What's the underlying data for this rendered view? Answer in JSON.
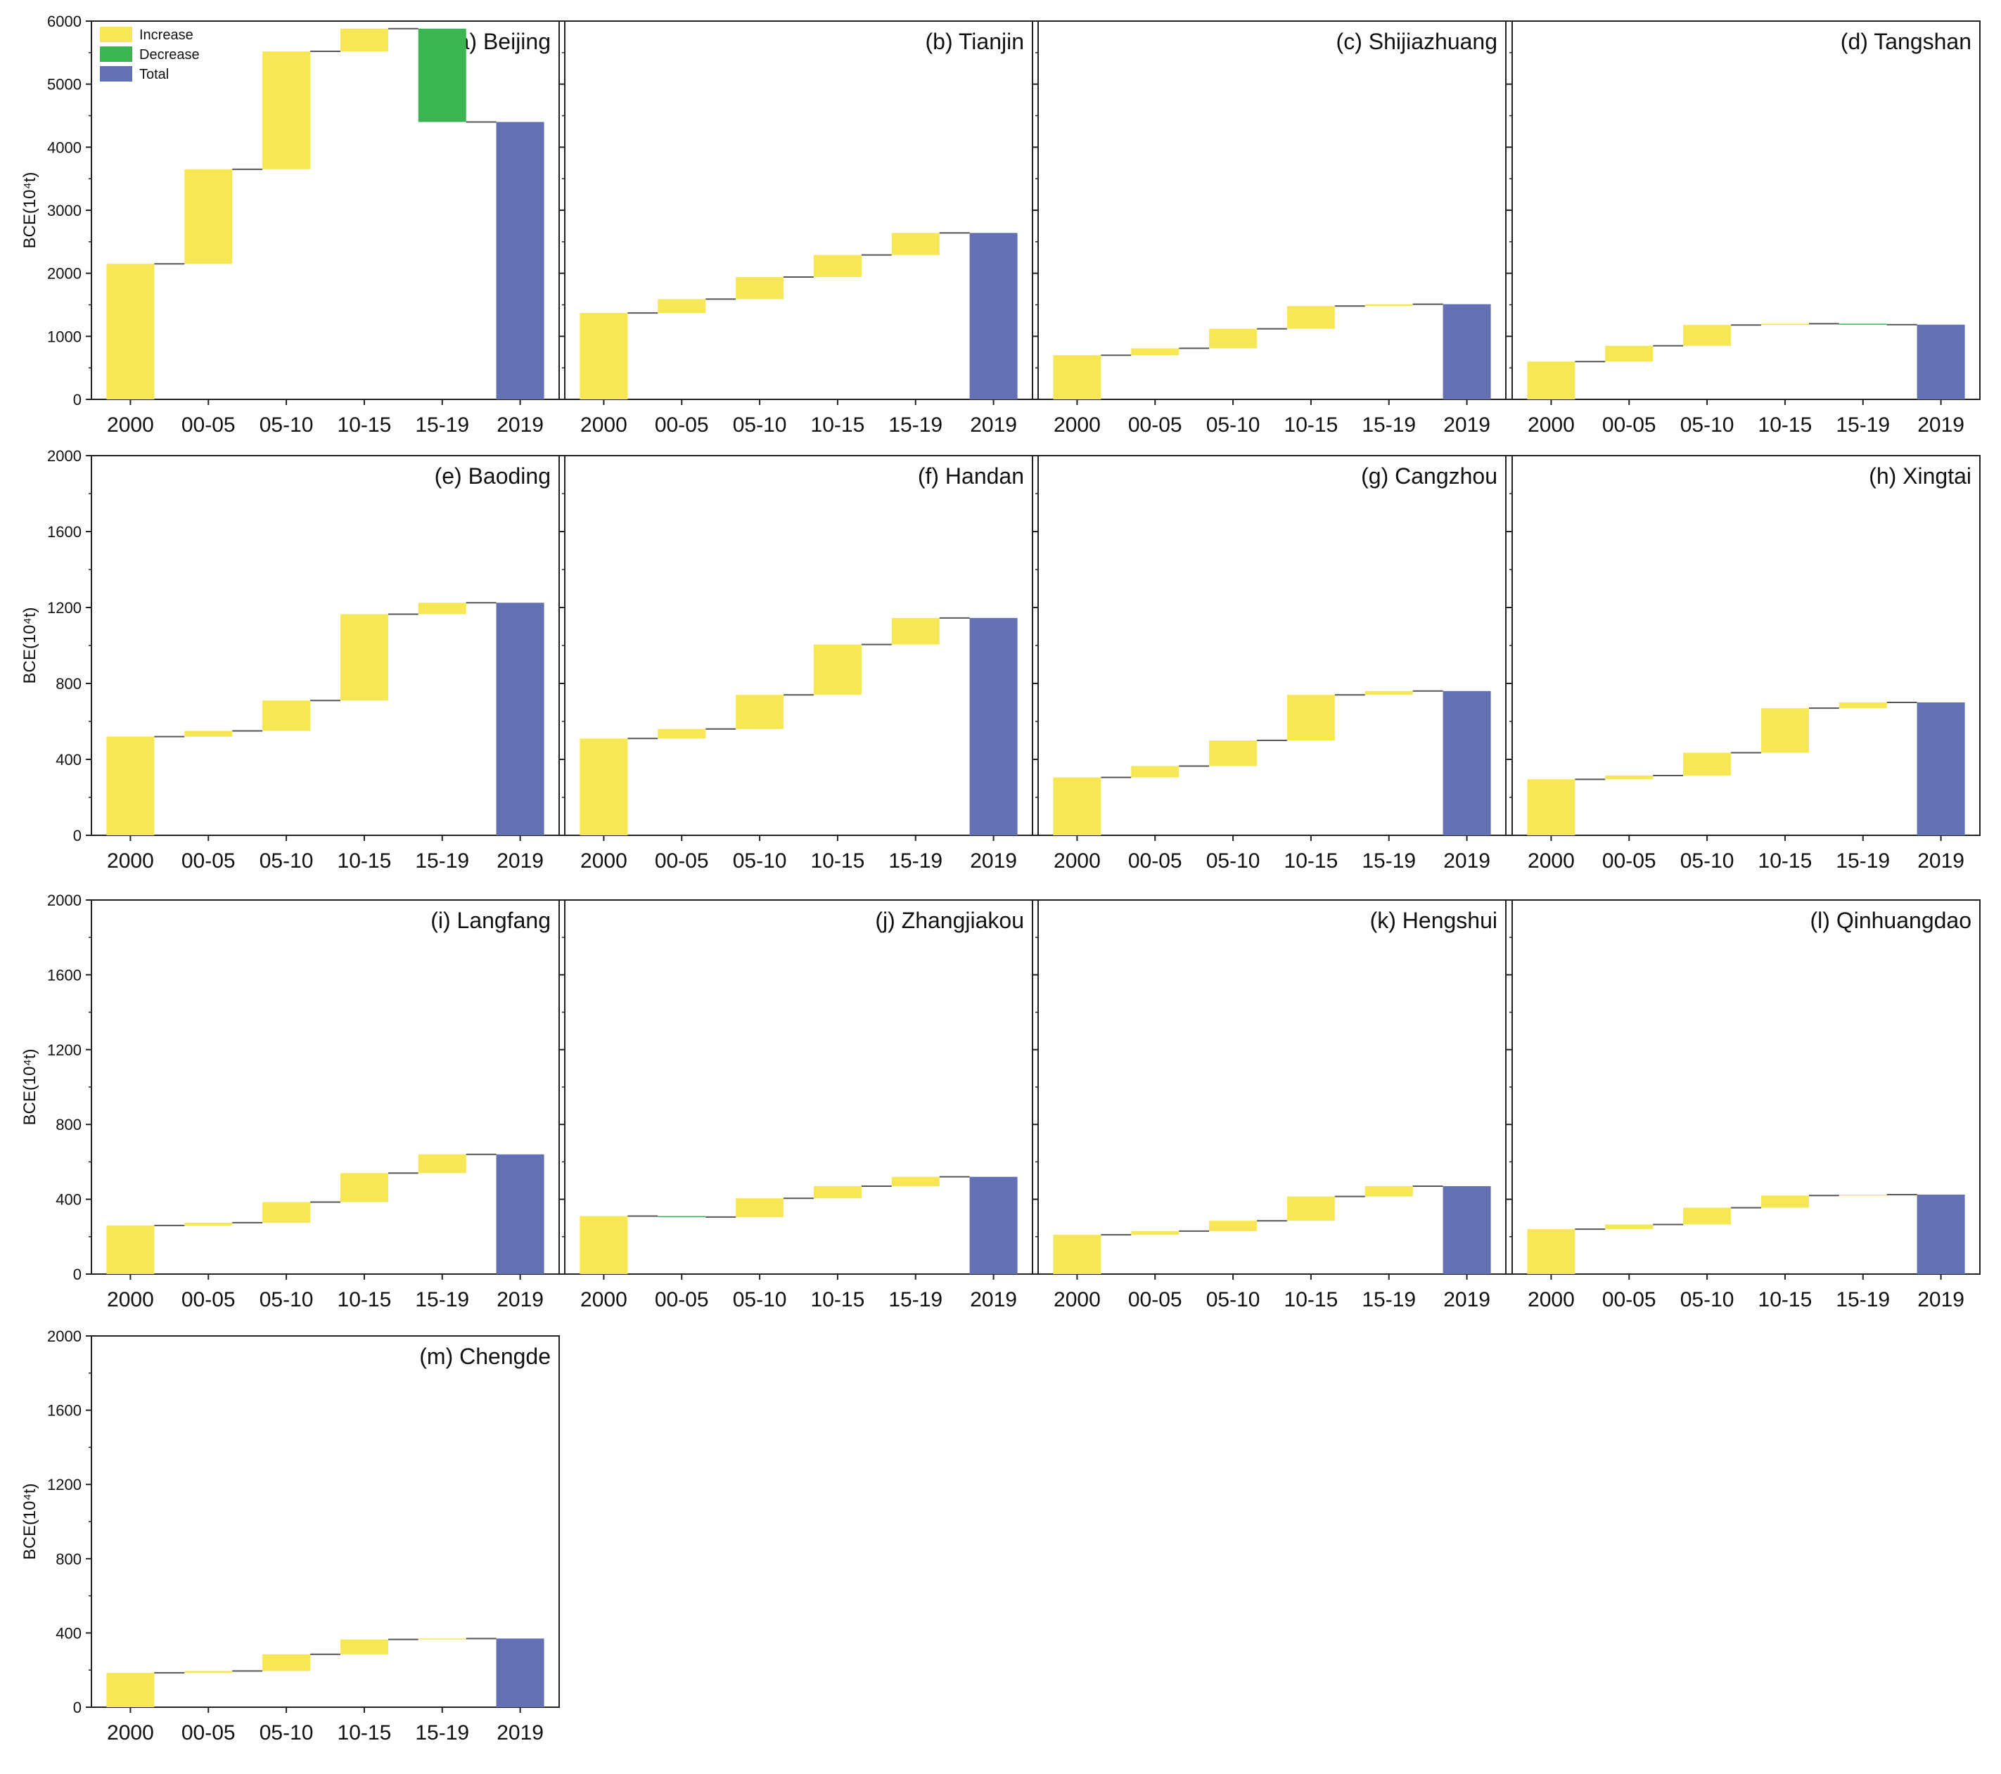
{
  "legend": {
    "increase_label": "Increase",
    "decrease_label": "Decrease",
    "total_label": "Total"
  },
  "colors": {
    "increase": "#F7E754",
    "decrease": "#3AB551",
    "total": "#6470B4",
    "connector": "#555555",
    "axis": "#222222"
  },
  "y_axis_label": "BCE(10⁴t)",
  "chart_data": [
    {
      "type": "waterfall",
      "title": "(a) Beijing",
      "xlabel": "",
      "ylabel": "BCE(10⁴t)",
      "categories": [
        "2000",
        "00-05",
        "05-10",
        "10-15",
        "15-19",
        "2019"
      ],
      "start": 2150,
      "changes": [
        1500,
        1870,
        360,
        -1480
      ],
      "total": 4400,
      "ylim": [
        0,
        6000
      ],
      "yticks": [
        0,
        1000,
        2000,
        3000,
        4000,
        5000,
        6000
      ],
      "show_y": true
    },
    {
      "type": "waterfall",
      "title": "(b) Tianjin",
      "xlabel": "",
      "ylabel": "BCE(10⁴t)",
      "categories": [
        "2000",
        "00-05",
        "05-10",
        "10-15",
        "15-19",
        "2019"
      ],
      "start": 1370,
      "changes": [
        220,
        350,
        350,
        350
      ],
      "total": 2640,
      "ylim": [
        0,
        6000
      ],
      "yticks": [
        0,
        1000,
        2000,
        3000,
        4000,
        5000,
        6000
      ],
      "show_y": false
    },
    {
      "type": "waterfall",
      "title": "(c) Shijiazhuang",
      "xlabel": "",
      "ylabel": "BCE(10⁴t)",
      "categories": [
        "2000",
        "00-05",
        "05-10",
        "10-15",
        "15-19",
        "2019"
      ],
      "start": 700,
      "changes": [
        110,
        310,
        360,
        30
      ],
      "total": 1510,
      "ylim": [
        0,
        6000
      ],
      "yticks": [
        0,
        1000,
        2000,
        3000,
        4000,
        5000,
        6000
      ],
      "show_y": false
    },
    {
      "type": "waterfall",
      "title": "(d) Tangshan",
      "xlabel": "",
      "ylabel": "BCE(10⁴t)",
      "categories": [
        "2000",
        "00-05",
        "05-10",
        "10-15",
        "15-19",
        "2019"
      ],
      "start": 600,
      "changes": [
        250,
        330,
        20,
        -15
      ],
      "total": 1185,
      "ylim": [
        0,
        6000
      ],
      "yticks": [
        0,
        1000,
        2000,
        3000,
        4000,
        5000,
        6000
      ],
      "show_y": false
    },
    {
      "type": "waterfall",
      "title": "(e) Baoding",
      "xlabel": "",
      "ylabel": "BCE(10⁴t)",
      "categories": [
        "2000",
        "00-05",
        "05-10",
        "10-15",
        "15-19",
        "2019"
      ],
      "start": 520,
      "changes": [
        30,
        160,
        455,
        60
      ],
      "total": 1225,
      "ylim": [
        0,
        2000
      ],
      "yticks": [
        0,
        400,
        800,
        1200,
        1600,
        2000
      ],
      "show_y": true
    },
    {
      "type": "waterfall",
      "title": "(f) Handan",
      "xlabel": "",
      "ylabel": "BCE(10⁴t)",
      "categories": [
        "2000",
        "00-05",
        "05-10",
        "10-15",
        "15-19",
        "2019"
      ],
      "start": 510,
      "changes": [
        50,
        180,
        265,
        140
      ],
      "total": 1145,
      "ylim": [
        0,
        2000
      ],
      "yticks": [
        0,
        400,
        800,
        1200,
        1600,
        2000
      ],
      "show_y": false
    },
    {
      "type": "waterfall",
      "title": "(g) Cangzhou",
      "xlabel": "",
      "ylabel": "BCE(10⁴t)",
      "categories": [
        "2000",
        "00-05",
        "05-10",
        "10-15",
        "15-19",
        "2019"
      ],
      "start": 305,
      "changes": [
        60,
        135,
        240,
        20
      ],
      "total": 760,
      "ylim": [
        0,
        2000
      ],
      "yticks": [
        0,
        400,
        800,
        1200,
        1600,
        2000
      ],
      "show_y": false
    },
    {
      "type": "waterfall",
      "title": "(h) Xingtai",
      "xlabel": "",
      "ylabel": "BCE(10⁴t)",
      "categories": [
        "2000",
        "00-05",
        "05-10",
        "10-15",
        "15-19",
        "2019"
      ],
      "start": 295,
      "changes": [
        20,
        120,
        235,
        30
      ],
      "total": 700,
      "ylim": [
        0,
        2000
      ],
      "yticks": [
        0,
        400,
        800,
        1200,
        1600,
        2000
      ],
      "show_y": false
    },
    {
      "type": "waterfall",
      "title": "(i) Langfang",
      "xlabel": "",
      "ylabel": "BCE(10⁴t)",
      "categories": [
        "2000",
        "00-05",
        "05-10",
        "10-15",
        "15-19",
        "2019"
      ],
      "start": 260,
      "changes": [
        15,
        110,
        155,
        100
      ],
      "total": 640,
      "ylim": [
        0,
        2000
      ],
      "yticks": [
        0,
        400,
        800,
        1200,
        1600,
        2000
      ],
      "show_y": true
    },
    {
      "type": "waterfall",
      "title": "(j) Zhangjiakou",
      "xlabel": "",
      "ylabel": "BCE(10⁴t)",
      "categories": [
        "2000",
        "00-05",
        "05-10",
        "10-15",
        "15-19",
        "2019"
      ],
      "start": 310,
      "changes": [
        -5,
        100,
        65,
        50
      ],
      "total": 520,
      "ylim": [
        0,
        2000
      ],
      "yticks": [
        0,
        400,
        800,
        1200,
        1600,
        2000
      ],
      "show_y": false
    },
    {
      "type": "waterfall",
      "title": "(k) Hengshui",
      "xlabel": "",
      "ylabel": "BCE(10⁴t)",
      "categories": [
        "2000",
        "00-05",
        "05-10",
        "10-15",
        "15-19",
        "2019"
      ],
      "start": 210,
      "changes": [
        20,
        55,
        130,
        55
      ],
      "total": 470,
      "ylim": [
        0,
        2000
      ],
      "yticks": [
        0,
        400,
        800,
        1200,
        1600,
        2000
      ],
      "show_y": false
    },
    {
      "type": "waterfall",
      "title": "(l) Qinhuangdao",
      "xlabel": "",
      "ylabel": "BCE(10⁴t)",
      "categories": [
        "2000",
        "00-05",
        "05-10",
        "10-15",
        "15-19",
        "2019"
      ],
      "start": 240,
      "changes": [
        25,
        90,
        65,
        5
      ],
      "total": 425,
      "ylim": [
        0,
        2000
      ],
      "yticks": [
        0,
        400,
        800,
        1200,
        1600,
        2000
      ],
      "show_y": false
    },
    {
      "type": "waterfall",
      "title": "(m) Chengde",
      "xlabel": "",
      "ylabel": "BCE(10⁴t)",
      "categories": [
        "2000",
        "00-05",
        "05-10",
        "10-15",
        "15-19",
        "2019"
      ],
      "start": 185,
      "changes": [
        10,
        90,
        80,
        5
      ],
      "total": 370,
      "ylim": [
        0,
        2000
      ],
      "yticks": [
        0,
        400,
        800,
        1200,
        1600,
        2000
      ],
      "show_y": true
    }
  ]
}
